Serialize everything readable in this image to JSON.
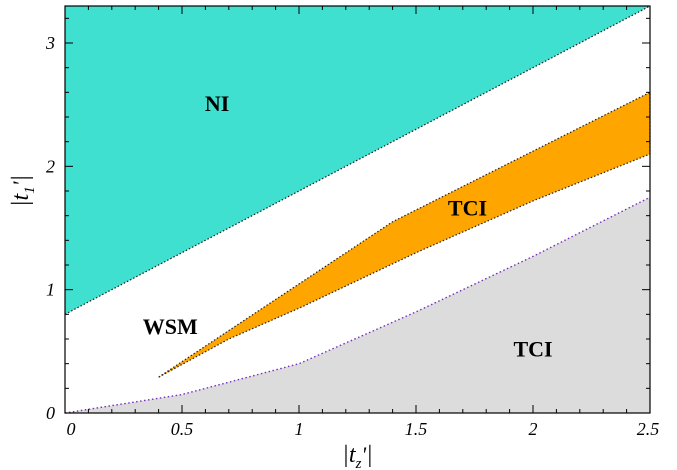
{
  "chart_data": {
    "type": "area",
    "title": "",
    "xlabel": {
      "bar": "|",
      "symbol": "t",
      "sub": "z",
      "prime": "'"
    },
    "ylabel": {
      "bar": "|",
      "symbol": "t",
      "sub": "1",
      "prime": "'"
    },
    "xlim": [
      0,
      2.5
    ],
    "ylim": [
      0,
      3.3
    ],
    "x_ticks": [
      "0",
      "0.5",
      "1",
      "1.5",
      "2",
      "2.5"
    ],
    "y_ticks": [
      "0",
      "1",
      "2",
      "3"
    ],
    "grid": false,
    "colors": {
      "NI": "#40E0D0",
      "TCI_band": "#FFA500",
      "TCI_lower": "#DCDCDC",
      "boundary_upper": "#1a1a1a",
      "boundary_band": "#222222",
      "boundary_lower": "#7b2cbf"
    },
    "regions": [
      {
        "label": "NI",
        "fill": "NI",
        "label_pos": [
          0.65,
          2.45
        ],
        "polygon": [
          [
            0,
            0.8
          ],
          [
            2.5,
            3.3
          ],
          [
            0,
            3.3
          ]
        ]
      },
      {
        "label": "TCI",
        "fill": "TCI_band",
        "label_pos": [
          1.72,
          1.6
        ],
        "polygon": [
          [
            0.4,
            0.29
          ],
          [
            1.4,
            1.55
          ],
          [
            2.5,
            2.6
          ],
          [
            2.5,
            2.1
          ],
          [
            2.0,
            1.72
          ],
          [
            1.5,
            1.3
          ],
          [
            1.0,
            0.85
          ],
          [
            0.7,
            0.6
          ],
          [
            0.4,
            0.29
          ]
        ]
      },
      {
        "label": "TCI",
        "fill": "TCI_lower",
        "label_pos": [
          2.0,
          0.46
        ],
        "polygon": [
          [
            0,
            0
          ],
          [
            0.5,
            0.15
          ],
          [
            1.0,
            0.4
          ],
          [
            1.5,
            0.82
          ],
          [
            2.0,
            1.27
          ],
          [
            2.5,
            1.75
          ],
          [
            2.5,
            0
          ],
          [
            0,
            0
          ]
        ]
      }
    ],
    "labels": [
      {
        "text": "WSM",
        "pos": [
          0.45,
          0.64
        ]
      }
    ]
  }
}
